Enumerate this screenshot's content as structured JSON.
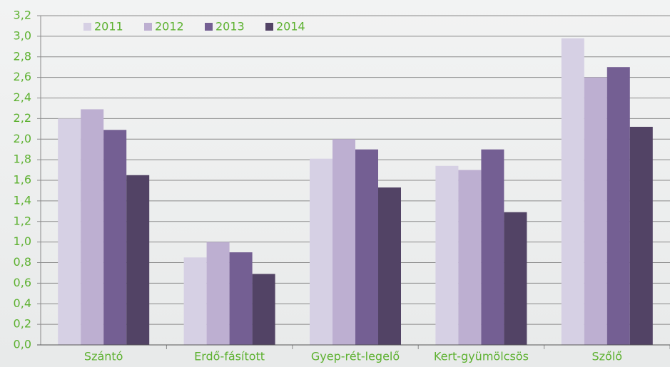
{
  "chart_data": {
    "type": "bar",
    "categories": [
      "Szántó",
      "Erdő-fásított",
      "Gyep-rét-legelő",
      "Kert-gyümölcsös",
      "Szőlő"
    ],
    "series": [
      {
        "name": "2011",
        "color": "#d6d0e4",
        "values": [
          2.2,
          0.85,
          1.81,
          1.74,
          2.98
        ]
      },
      {
        "name": "2012",
        "color": "#bdafd1",
        "values": [
          2.29,
          1.0,
          2.0,
          1.7,
          2.6
        ]
      },
      {
        "name": "2013",
        "color": "#745f93",
        "values": [
          2.09,
          0.9,
          1.9,
          1.9,
          2.7
        ]
      },
      {
        "name": "2014",
        "color": "#524365",
        "values": [
          1.65,
          0.69,
          1.53,
          1.29,
          2.12
        ]
      }
    ],
    "ylim": [
      0,
      3.2
    ],
    "yticks": [
      {
        "value": 0,
        "label": "0,0"
      },
      {
        "value": 0.2,
        "label": "0,2"
      },
      {
        "value": 0.4,
        "label": "0,4"
      },
      {
        "value": 0.6,
        "label": "0,6"
      },
      {
        "value": 0.8,
        "label": "0,8"
      },
      {
        "value": 1.0,
        "label": "1,0"
      },
      {
        "value": 1.2,
        "label": "1,2"
      },
      {
        "value": 1.4,
        "label": "1,4"
      },
      {
        "value": 1.6,
        "label": "1,6"
      },
      {
        "value": 1.8,
        "label": "1,8"
      },
      {
        "value": 2.0,
        "label": "2,0"
      },
      {
        "value": 2.2,
        "label": "2,2"
      },
      {
        "value": 2.4,
        "label": "2,4"
      },
      {
        "value": 2.6,
        "label": "2,6"
      },
      {
        "value": 2.8,
        "label": "2,8"
      },
      {
        "value": 3.0,
        "label": "3,0"
      },
      {
        "value": 3.2,
        "label": "3,2"
      }
    ],
    "grid": true
  }
}
